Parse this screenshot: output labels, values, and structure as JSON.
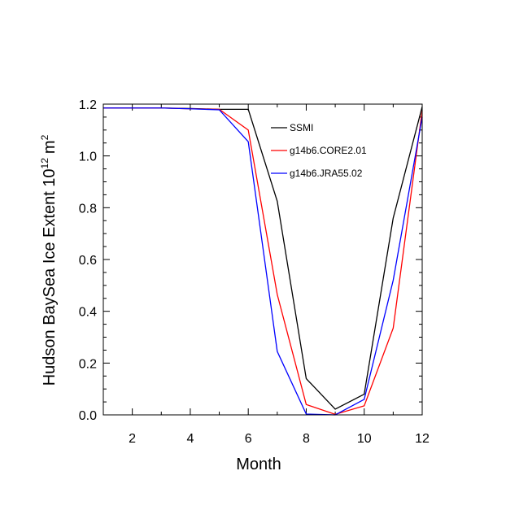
{
  "chart_data": {
    "type": "line",
    "title": "",
    "xlabel": "Month",
    "ylabel": {
      "main": "Hudson BaySea Ice Extent 10",
      "superscript": "12",
      "unit": "m",
      "unit_superscript": "2"
    },
    "xlim": [
      1,
      12
    ],
    "ylim": [
      0.0,
      1.2
    ],
    "x_ticks": [
      2,
      4,
      6,
      8,
      10,
      12
    ],
    "x_tick_labels": [
      "2",
      "4",
      "6",
      "8",
      "10",
      "12"
    ],
    "y_ticks": [
      0.0,
      0.2,
      0.4,
      0.6,
      0.8,
      1.0,
      1.2
    ],
    "y_tick_labels": [
      "0.0",
      "0.2",
      "0.4",
      "0.6",
      "0.8",
      "1.0",
      "1.2"
    ],
    "grid": false,
    "legend_position": "top-right",
    "x": [
      1,
      2,
      3,
      4,
      5,
      6,
      7,
      8,
      9,
      10,
      11,
      12
    ],
    "series": [
      {
        "name": "SSMI",
        "color": "#000000",
        "values": [
          1.185,
          1.185,
          1.185,
          1.183,
          1.18,
          1.18,
          0.825,
          0.14,
          0.022,
          0.08,
          0.76,
          1.19
        ]
      },
      {
        "name": "g14b6.CORE2.01",
        "color": "#ff0000",
        "values": [
          1.185,
          1.185,
          1.185,
          1.182,
          1.18,
          1.1,
          0.465,
          0.04,
          0.002,
          0.035,
          0.335,
          1.175
        ]
      },
      {
        "name": "g14b6.JRA55.02",
        "color": "#0000ff",
        "values": [
          1.185,
          1.185,
          1.185,
          1.182,
          1.178,
          1.055,
          0.245,
          0.003,
          0.0,
          0.06,
          0.52,
          1.15
        ]
      }
    ]
  }
}
